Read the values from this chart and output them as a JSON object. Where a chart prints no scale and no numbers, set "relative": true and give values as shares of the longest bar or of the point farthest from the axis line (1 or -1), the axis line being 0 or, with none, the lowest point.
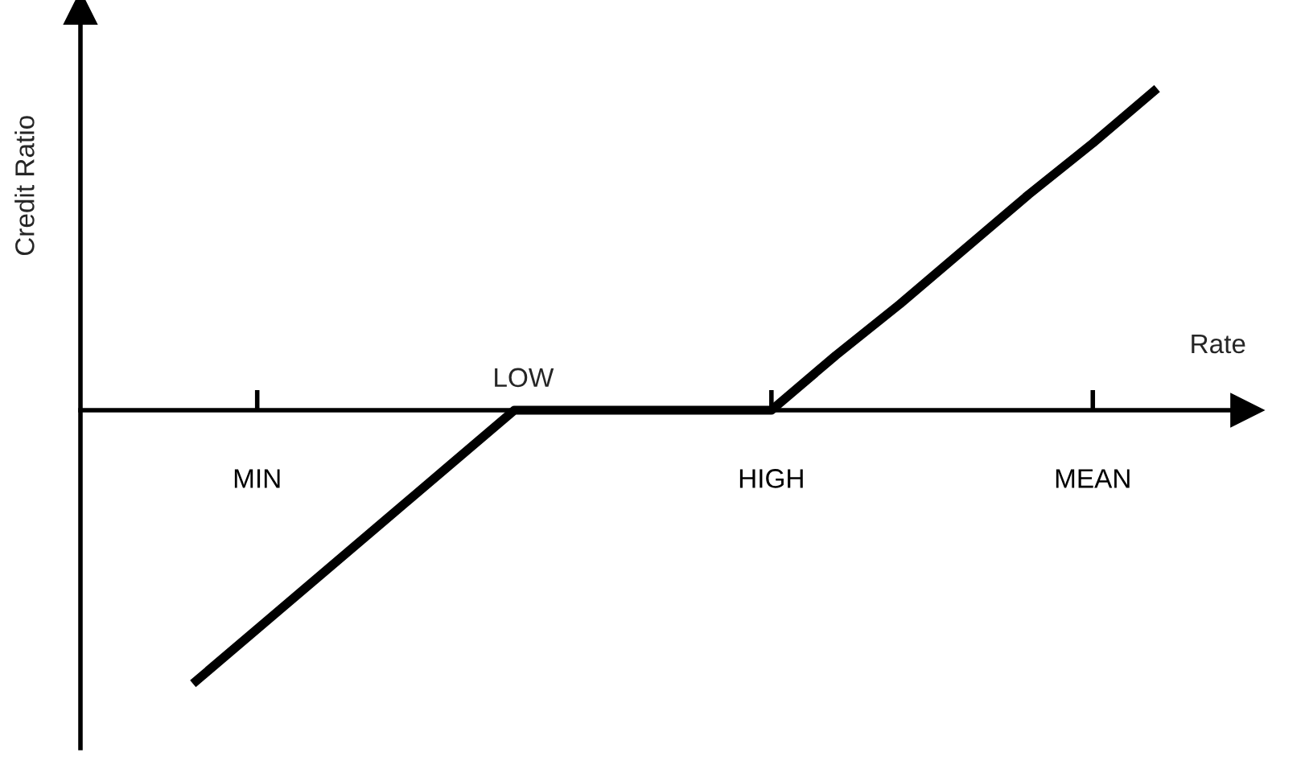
{
  "chart_data": {
    "type": "line",
    "relative": true,
    "xlabel": "Rate",
    "ylabel": "Credit Ratio",
    "categories": [
      null,
      "MIN",
      null,
      null,
      null,
      null,
      null,
      null,
      null,
      "HIGH",
      null,
      null,
      null,
      null,
      "MEAN",
      null
    ],
    "annotations": [
      {
        "text": "LOW",
        "y": 0
      }
    ],
    "series": [
      {
        "color": "#000000",
        "values": [
          -0.85,
          -0.68,
          -0.51,
          -0.34,
          -0.17,
          0,
          0,
          0,
          0,
          0,
          0.17,
          0.33,
          0.5,
          0.67,
          0.83,
          1
        ]
      }
    ],
    "grid": false,
    "line_style": "solid"
  }
}
